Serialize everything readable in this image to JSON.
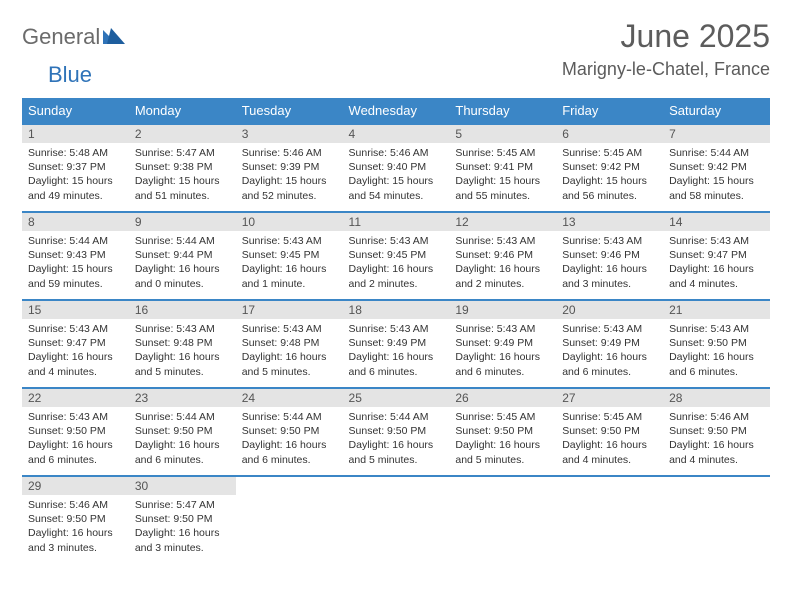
{
  "brand": {
    "part1": "General",
    "part2": "Blue"
  },
  "title": "June 2025",
  "location": "Marigny-le-Chatel, France",
  "columns": [
    "Sunday",
    "Monday",
    "Tuesday",
    "Wednesday",
    "Thursday",
    "Friday",
    "Saturday"
  ],
  "colors": {
    "header_bg": "#3b86c6",
    "header_fg": "#ffffff",
    "daynum_bg": "#e4e4e4",
    "row_border": "#3b86c6",
    "brand_gray": "#6b6b6b",
    "brand_blue": "#2f73b8",
    "title_color": "#5c5c5c"
  },
  "days": [
    {
      "n": 1,
      "sunrise": "5:48 AM",
      "sunset": "9:37 PM",
      "daylight": "15 hours and 49 minutes."
    },
    {
      "n": 2,
      "sunrise": "5:47 AM",
      "sunset": "9:38 PM",
      "daylight": "15 hours and 51 minutes."
    },
    {
      "n": 3,
      "sunrise": "5:46 AM",
      "sunset": "9:39 PM",
      "daylight": "15 hours and 52 minutes."
    },
    {
      "n": 4,
      "sunrise": "5:46 AM",
      "sunset": "9:40 PM",
      "daylight": "15 hours and 54 minutes."
    },
    {
      "n": 5,
      "sunrise": "5:45 AM",
      "sunset": "9:41 PM",
      "daylight": "15 hours and 55 minutes."
    },
    {
      "n": 6,
      "sunrise": "5:45 AM",
      "sunset": "9:42 PM",
      "daylight": "15 hours and 56 minutes."
    },
    {
      "n": 7,
      "sunrise": "5:44 AM",
      "sunset": "9:42 PM",
      "daylight": "15 hours and 58 minutes."
    },
    {
      "n": 8,
      "sunrise": "5:44 AM",
      "sunset": "9:43 PM",
      "daylight": "15 hours and 59 minutes."
    },
    {
      "n": 9,
      "sunrise": "5:44 AM",
      "sunset": "9:44 PM",
      "daylight": "16 hours and 0 minutes."
    },
    {
      "n": 10,
      "sunrise": "5:43 AM",
      "sunset": "9:45 PM",
      "daylight": "16 hours and 1 minute."
    },
    {
      "n": 11,
      "sunrise": "5:43 AM",
      "sunset": "9:45 PM",
      "daylight": "16 hours and 2 minutes."
    },
    {
      "n": 12,
      "sunrise": "5:43 AM",
      "sunset": "9:46 PM",
      "daylight": "16 hours and 2 minutes."
    },
    {
      "n": 13,
      "sunrise": "5:43 AM",
      "sunset": "9:46 PM",
      "daylight": "16 hours and 3 minutes."
    },
    {
      "n": 14,
      "sunrise": "5:43 AM",
      "sunset": "9:47 PM",
      "daylight": "16 hours and 4 minutes."
    },
    {
      "n": 15,
      "sunrise": "5:43 AM",
      "sunset": "9:47 PM",
      "daylight": "16 hours and 4 minutes."
    },
    {
      "n": 16,
      "sunrise": "5:43 AM",
      "sunset": "9:48 PM",
      "daylight": "16 hours and 5 minutes."
    },
    {
      "n": 17,
      "sunrise": "5:43 AM",
      "sunset": "9:48 PM",
      "daylight": "16 hours and 5 minutes."
    },
    {
      "n": 18,
      "sunrise": "5:43 AM",
      "sunset": "9:49 PM",
      "daylight": "16 hours and 6 minutes."
    },
    {
      "n": 19,
      "sunrise": "5:43 AM",
      "sunset": "9:49 PM",
      "daylight": "16 hours and 6 minutes."
    },
    {
      "n": 20,
      "sunrise": "5:43 AM",
      "sunset": "9:49 PM",
      "daylight": "16 hours and 6 minutes."
    },
    {
      "n": 21,
      "sunrise": "5:43 AM",
      "sunset": "9:50 PM",
      "daylight": "16 hours and 6 minutes."
    },
    {
      "n": 22,
      "sunrise": "5:43 AM",
      "sunset": "9:50 PM",
      "daylight": "16 hours and 6 minutes."
    },
    {
      "n": 23,
      "sunrise": "5:44 AM",
      "sunset": "9:50 PM",
      "daylight": "16 hours and 6 minutes."
    },
    {
      "n": 24,
      "sunrise": "5:44 AM",
      "sunset": "9:50 PM",
      "daylight": "16 hours and 6 minutes."
    },
    {
      "n": 25,
      "sunrise": "5:44 AM",
      "sunset": "9:50 PM",
      "daylight": "16 hours and 5 minutes."
    },
    {
      "n": 26,
      "sunrise": "5:45 AM",
      "sunset": "9:50 PM",
      "daylight": "16 hours and 5 minutes."
    },
    {
      "n": 27,
      "sunrise": "5:45 AM",
      "sunset": "9:50 PM",
      "daylight": "16 hours and 4 minutes."
    },
    {
      "n": 28,
      "sunrise": "5:46 AM",
      "sunset": "9:50 PM",
      "daylight": "16 hours and 4 minutes."
    },
    {
      "n": 29,
      "sunrise": "5:46 AM",
      "sunset": "9:50 PM",
      "daylight": "16 hours and 3 minutes."
    },
    {
      "n": 30,
      "sunrise": "5:47 AM",
      "sunset": "9:50 PM",
      "daylight": "16 hours and 3 minutes."
    }
  ],
  "labels": {
    "sunrise": "Sunrise: ",
    "sunset": "Sunset: ",
    "daylight": "Daylight: "
  },
  "start_weekday": 0
}
